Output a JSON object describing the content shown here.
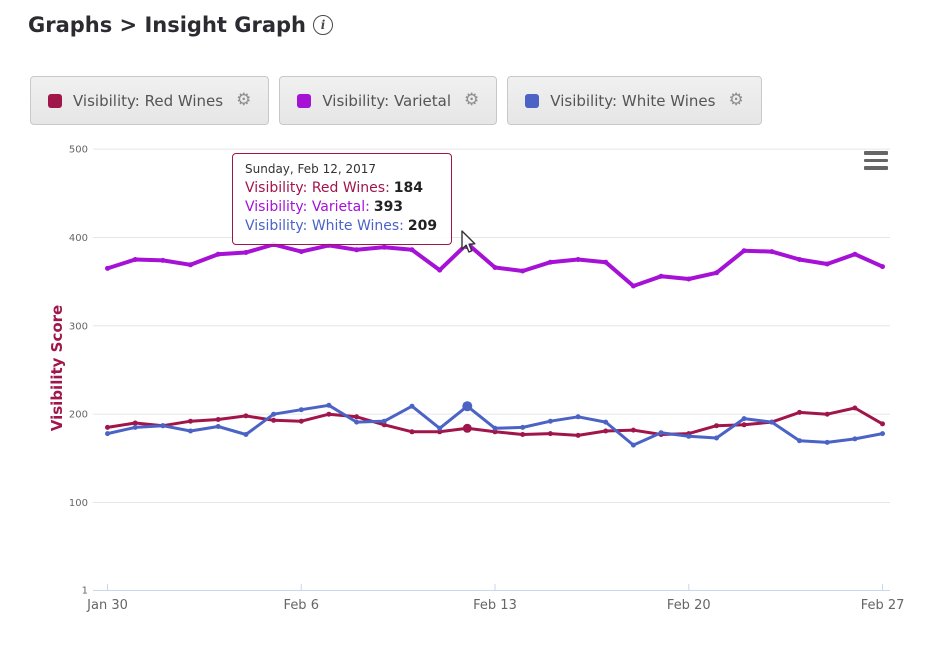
{
  "header": {
    "title": "Graphs > Insight Graph",
    "info_icon": "info"
  },
  "legend": {
    "items": [
      {
        "label": "Visibility: Red Wines",
        "color": "#a0164a",
        "gear_icon": "gear"
      },
      {
        "label": "Visibility: Varietal",
        "color": "#a611d6",
        "gear_icon": "gear"
      },
      {
        "label": "Visibility: White Wines",
        "color": "#4a63c5",
        "gear_icon": "gear"
      }
    ]
  },
  "chart_data": {
    "type": "line",
    "title": "",
    "xlabel": "",
    "ylabel": "Visibility Score",
    "ylabel_color": "#a0164a",
    "ylim": [
      1,
      500
    ],
    "grid": true,
    "legend_position": "top",
    "categories": [
      "Jan 30",
      "Jan 31",
      "Feb 1",
      "Feb 2",
      "Feb 3",
      "Feb 4",
      "Feb 5",
      "Feb 6",
      "Feb 7",
      "Feb 8",
      "Feb 9",
      "Feb 10",
      "Feb 11",
      "Feb 12",
      "Feb 13",
      "Feb 14",
      "Feb 15",
      "Feb 16",
      "Feb 17",
      "Feb 18",
      "Feb 19",
      "Feb 20",
      "Feb 21",
      "Feb 22",
      "Feb 23",
      "Feb 24",
      "Feb 25",
      "Feb 26",
      "Feb 27"
    ],
    "xtick_labels": [
      "Jan 30",
      "Feb 6",
      "Feb 13",
      "Feb 20",
      "Feb 27"
    ],
    "xtick_indices": [
      0,
      7,
      14,
      21,
      28
    ],
    "yticks": [
      {
        "value": 1,
        "label": "1"
      },
      {
        "value": 100,
        "label": "100"
      },
      {
        "value": 200,
        "label": "200"
      },
      {
        "value": 300,
        "label": "300"
      },
      {
        "value": 400,
        "label": "400"
      },
      {
        "value": 500,
        "label": "500"
      }
    ],
    "series": [
      {
        "name": "Visibility: Red Wines",
        "color": "#a0164a",
        "line_width": 3,
        "values": [
          185,
          190,
          187,
          192,
          194,
          198,
          193,
          192,
          200,
          197,
          188,
          180,
          180,
          184,
          180,
          177,
          178,
          176,
          181,
          182,
          177,
          178,
          187,
          188,
          191,
          202,
          200,
          207,
          189
        ]
      },
      {
        "name": "Visibility: Varietal",
        "color": "#a611d6",
        "line_width": 4,
        "values": [
          365,
          375,
          374,
          369,
          381,
          383,
          392,
          384,
          391,
          386,
          389,
          386,
          363,
          393,
          366,
          362,
          372,
          375,
          372,
          345,
          356,
          353,
          360,
          385,
          384,
          375,
          370,
          381,
          367
        ]
      },
      {
        "name": "Visibility: White Wines",
        "color": "#4a63c5",
        "line_width": 3,
        "values": [
          178,
          185,
          187,
          181,
          186,
          177,
          200,
          205,
          210,
          191,
          192,
          209,
          184,
          209,
          184,
          185,
          192,
          197,
          191,
          165,
          179,
          175,
          173,
          195,
          191,
          170,
          168,
          172,
          178
        ]
      }
    ],
    "hover_index": 13
  },
  "tooltip": {
    "date": "Sunday, Feb 12, 2017",
    "rows": [
      {
        "label": "Visibility: Red Wines:",
        "value": "184",
        "color": "#a0164a"
      },
      {
        "label": "Visibility: Varietal:",
        "value": "393",
        "color": "#a611d6"
      },
      {
        "label": "Visibility: White Wines:",
        "value": "209",
        "color": "#4a63c5"
      }
    ]
  },
  "chart_menu": {
    "icon": "hamburger-menu"
  }
}
